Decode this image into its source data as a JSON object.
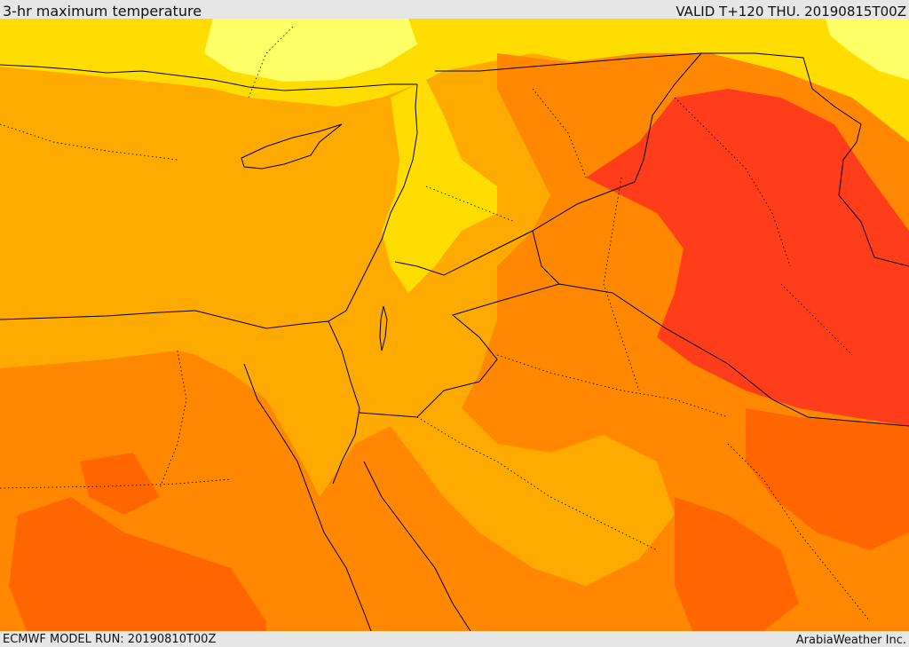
{
  "header": {
    "title": "3-hr maximum temperature",
    "valid": "VALID T+120 THU. 20190815T00Z"
  },
  "footer": {
    "model_run": "ECMWF MODEL RUN: 20190810T00Z",
    "credit": "ArabiaWeather Inc."
  },
  "colors": {
    "pale_yellow": "#ffff66",
    "yellow": "#ffdd00",
    "gold": "#ffaa00",
    "orange": "#ff8800",
    "dark_orange": "#ff6600",
    "red_orange": "#ff3d1a",
    "border": "#000000"
  }
}
